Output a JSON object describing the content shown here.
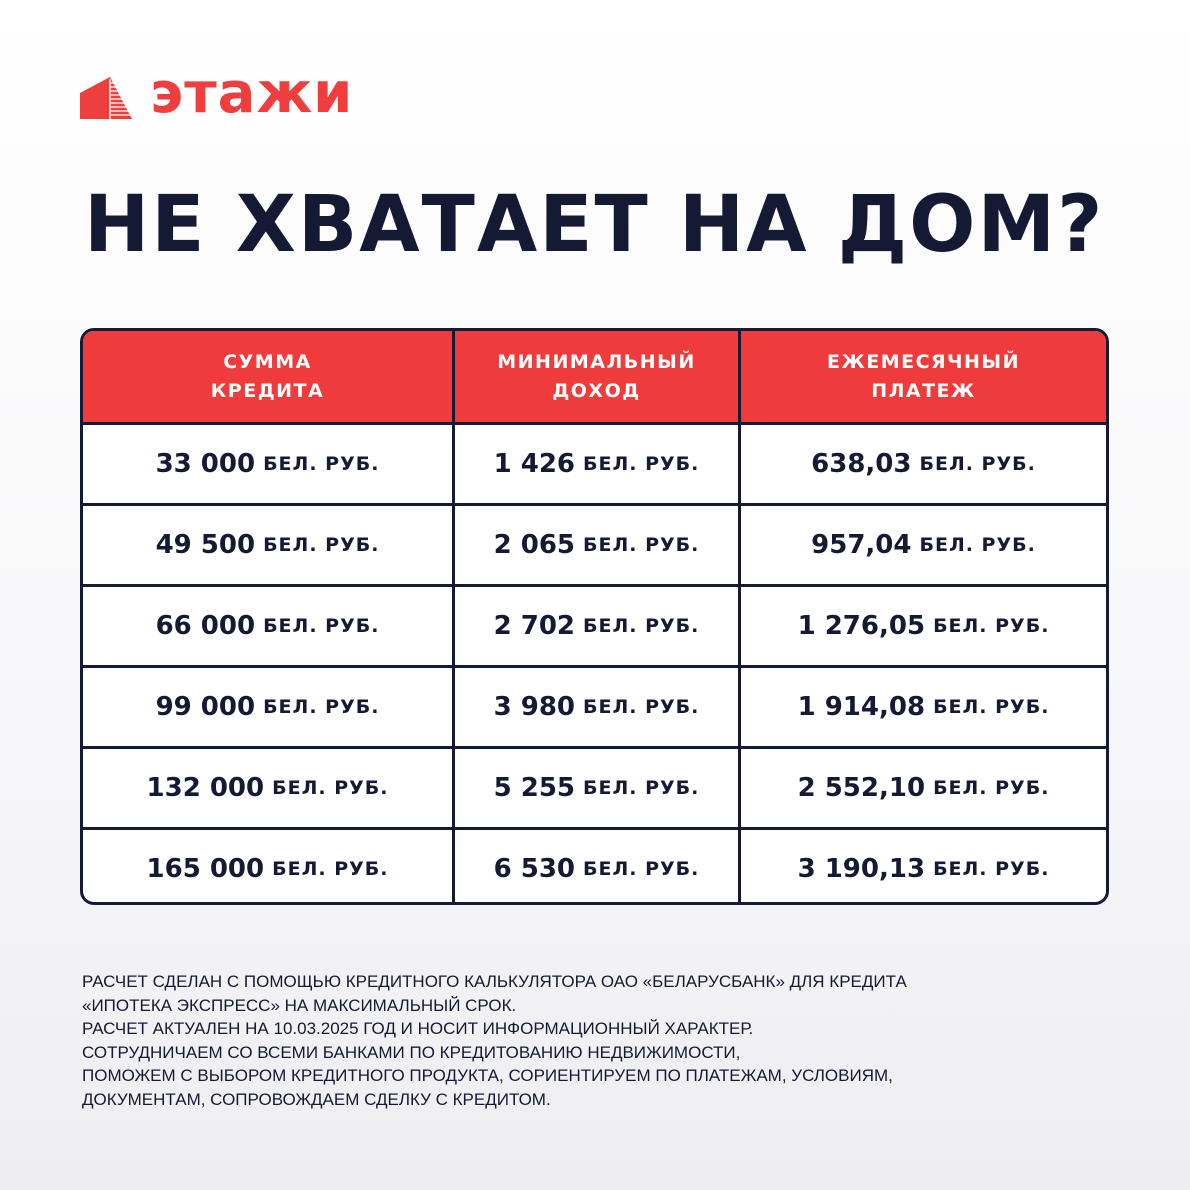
{
  "brand": {
    "name": "этажи",
    "color": "#ef3e3e"
  },
  "title": "НЕ ХВАТАЕТ НА ДОМ?",
  "table": {
    "headers": [
      "СУММА\nКРЕДИТА",
      "МИНИМАЛЬНЫЙ\nДОХОД",
      "ЕЖЕМЕСЯЧНЫЙ\nПЛАТЕЖ"
    ],
    "unit": "БЕЛ. РУБ.",
    "rows": [
      [
        "33 000",
        "1 426",
        "638,03"
      ],
      [
        "49 500",
        "2 065",
        "957,04"
      ],
      [
        "66 000",
        "2 702",
        "1 276,05"
      ],
      [
        "99 000",
        "3 980",
        "1 914,08"
      ],
      [
        "132 000",
        "5 255",
        "2 552,10"
      ],
      [
        "165 000",
        "6 530",
        "3 190,13"
      ]
    ],
    "header_color": "#ef3b3b",
    "border_color": "#141a33"
  },
  "footnote": [
    "РАСЧЕТ СДЕЛАН С ПОМОЩЬЮ КРЕДИТНОГО КАЛЬКУЛЯТОРА ОАО «БЕЛАРУСБАНК» ДЛЯ КРЕДИТА",
    "«ИПОТЕКА ЭКСПРЕСС» НА МАКСИМАЛЬНЫЙ СРОК.",
    "РАСЧЕТ АКТУАЛЕН НА 10.03.2025 ГОД И НОСИТ ИНФОРМАЦИОННЫЙ ХАРАКТЕР.",
    "СОТРУДНИЧАЕМ СО ВСЕМИ БАНКАМИ ПО КРЕДИТОВАНИЮ НЕДВИЖИМОСТИ,",
    "ПОМОЖЕМ С ВЫБОРОМ КРЕДИТНОГО ПРОДУКТА, СОРИЕНТИРУЕМ ПО ПЛАТЕЖАМ, УСЛОВИЯМ,",
    "ДОКУМЕНТАМ, СОПРОВОЖДАЕМ СДЕЛКУ С КРЕДИТОМ."
  ]
}
